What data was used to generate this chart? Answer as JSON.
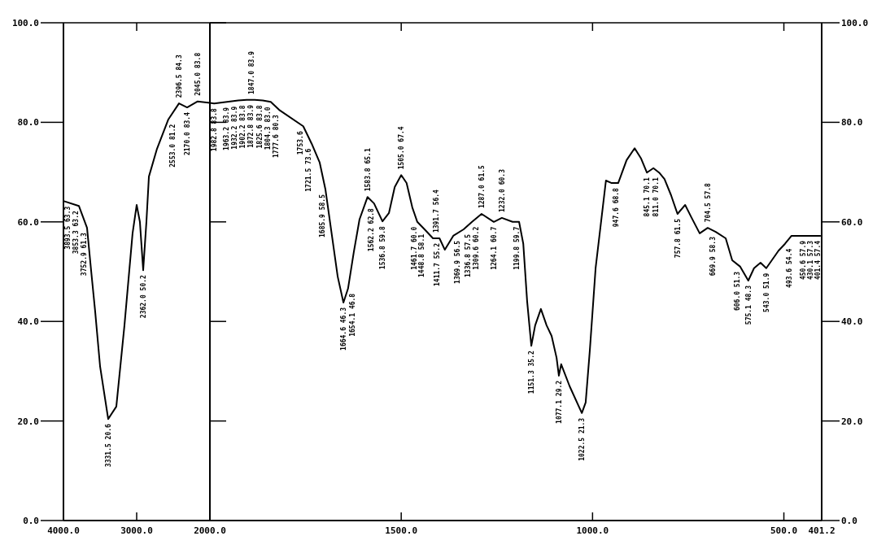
{
  "chart_data": [
    {
      "type": "line",
      "color": "#000000",
      "line_style": "solid",
      "x": [
        4000,
        3789,
        3678,
        3622,
        3567,
        3500,
        3389,
        3278,
        3167,
        3056,
        3000,
        2956,
        2911,
        2867,
        2833,
        2722,
        2567,
        2422,
        2311,
        2167,
        2000
      ],
      "values": [
        64.2,
        63.2,
        58.8,
        50.2,
        42.0,
        31.0,
        20.4,
        22.9,
        39.2,
        57.7,
        63.4,
        60.0,
        50.3,
        60.0,
        69.1,
        74.7,
        80.6,
        83.8,
        83.0,
        84.2,
        83.9
      ],
      "xlim": [
        4000,
        2000
      ],
      "xticks": [
        {
          "value": 4000,
          "label": "4000.0"
        },
        {
          "value": 3000,
          "label": "3000.0"
        },
        {
          "value": 2000,
          "label": "2000.0"
        }
      ],
      "ylim": [
        0,
        100
      ],
      "yticks": [
        {
          "value": 0,
          "label": "0.0"
        },
        {
          "value": 20,
          "label": "20.0"
        },
        {
          "value": 40,
          "label": "40.0"
        },
        {
          "value": 60,
          "label": "60.0"
        },
        {
          "value": 80,
          "label": "80.0"
        },
        {
          "value": 100,
          "label": "100.0"
        }
      ],
      "annotations": [
        {
          "text": "3893.5 63.3",
          "x": 4000,
          "y": 64.2
        },
        {
          "text": "3853.3 63.2",
          "x": 3789,
          "y": 63.2
        },
        {
          "text": "3752.9 61.3",
          "x": 3678,
          "y": 58.8
        },
        {
          "text": "3331.5 20.6",
          "x": 3389,
          "y": 20.4
        },
        {
          "text": "2362.0 50.2",
          "x": 2911,
          "y": 50.3
        },
        {
          "text": "2553.0 81.2",
          "x": 2567,
          "y": 80.6
        },
        {
          "text": "2396.5 84.3",
          "x": 2422,
          "y": 83.8
        },
        {
          "text": "2170.0 83.4",
          "x": 2311,
          "y": 83.0
        },
        {
          "text": "2045.0 83.8",
          "x": 2167,
          "y": 84.2
        }
      ]
    },
    {
      "type": "line",
      "x": [
        2000,
        1989,
        1968,
        1947,
        1926,
        1904,
        1883,
        1862,
        1841,
        1819,
        1756,
        1734,
        1713,
        1698,
        1681,
        1666,
        1651,
        1639,
        1624,
        1609,
        1588,
        1571,
        1549,
        1532,
        1517,
        1500,
        1486,
        1471,
        1458,
        1439,
        1417,
        1400,
        1386,
        1364,
        1337,
        1315,
        1290,
        1258,
        1237,
        1209,
        1192,
        1181,
        1171,
        1160,
        1150,
        1135,
        1120,
        1107,
        1094,
        1088,
        1082,
        1060,
        1028,
        1018,
        1007,
        992,
        965,
        950,
        933,
        911,
        890,
        873,
        858,
        841,
        826,
        812,
        795,
        778,
        758,
        741,
        720,
        699,
        678,
        652,
        635,
        614,
        593,
        578,
        561,
        546,
        514,
        497,
        480,
        461,
        442,
        423,
        405
      ],
      "color": "#000000",
      "line_style": "solid",
      "values": [
        83.9,
        83.8,
        84.0,
        84.2,
        84.4,
        84.5,
        84.5,
        84.4,
        84.1,
        82.5,
        79.2,
        75.7,
        71.9,
        66.5,
        57.2,
        49.0,
        43.8,
        46.6,
        53.9,
        60.5,
        65.0,
        63.7,
        60.1,
        61.8,
        67.0,
        69.4,
        67.8,
        62.9,
        60.0,
        58.5,
        56.7,
        56.7,
        54.4,
        57.2,
        58.5,
        60.0,
        61.6,
        60.0,
        60.8,
        60.0,
        60.0,
        55.6,
        44.1,
        35.1,
        39.2,
        42.5,
        39.2,
        37.1,
        32.7,
        29.1,
        31.4,
        27.0,
        21.6,
        23.7,
        34.3,
        50.7,
        68.3,
        67.8,
        67.8,
        72.4,
        74.8,
        72.7,
        69.9,
        70.8,
        69.9,
        68.6,
        65.4,
        61.6,
        63.4,
        60.8,
        57.7,
        58.8,
        58.0,
        56.7,
        52.3,
        51.0,
        48.2,
        50.7,
        51.8,
        50.7,
        54.2,
        55.6,
        57.2,
        57.2,
        57.2,
        57.2,
        57.2
      ],
      "xlim": [
        2000,
        401.2
      ],
      "xticks": [
        {
          "value": 2000,
          "label": null
        },
        {
          "value": 1500,
          "label": "1500.0"
        },
        {
          "value": 1000,
          "label": "1000.0"
        },
        {
          "value": 500,
          "label": "500.0"
        },
        {
          "value": 401.2,
          "label": "401.2"
        }
      ],
      "ylim": [
        0,
        100
      ],
      "yticks": [
        {
          "value": 0,
          "label": "0.0"
        },
        {
          "value": 20,
          "label": "20.0"
        },
        {
          "value": 40,
          "label": "40.0"
        },
        {
          "value": 60,
          "label": "60.0"
        },
        {
          "value": 80,
          "label": "80.0"
        },
        {
          "value": 100,
          "label": "100.0"
        }
      ],
      "annotations": [
        {
          "text": "1982.8 83.8",
          "x": 1989,
          "y": 83.8
        },
        {
          "text": "1963.2 83.9",
          "x": 1968,
          "y": 84.0
        },
        {
          "text": "1932.2 83.9",
          "x": 1947,
          "y": 84.2
        },
        {
          "text": "1902.2 83.8",
          "x": 1926,
          "y": 84.4
        },
        {
          "text": "1872.8 83.9",
          "x": 1904,
          "y": 84.5
        },
        {
          "text": "1847.0 83.9",
          "x": 1883,
          "y": 84.5
        },
        {
          "text": "1825.6 83.8",
          "x": 1862,
          "y": 84.4
        },
        {
          "text": "1804.3 83.0",
          "x": 1841,
          "y": 84.1
        },
        {
          "text": "1777.6 80.3",
          "x": 1819,
          "y": 82.5
        },
        {
          "text": "1753.6",
          "x": 1756,
          "y": 79.2
        },
        {
          "text": "1721.5 73.6",
          "x": 1734,
          "y": 75.7
        },
        {
          "text": "1685.9 58.5",
          "x": 1698,
          "y": 66.5
        },
        {
          "text": "1664.6 46.3",
          "x": 1651,
          "y": 43.8
        },
        {
          "text": "1654.1 46.8",
          "x": 1639,
          "y": 46.6
        },
        {
          "text": "1583.8 65.1",
          "x": 1588,
          "y": 65.0
        },
        {
          "text": "1562.2 62.8",
          "x": 1571,
          "y": 63.7
        },
        {
          "text": "1536.8 59.8",
          "x": 1549,
          "y": 60.1
        },
        {
          "text": "1505.0 67.4",
          "x": 1500,
          "y": 69.4
        },
        {
          "text": "1461.7 60.0",
          "x": 1458,
          "y": 60.0
        },
        {
          "text": "1448.8 58.1",
          "x": 1439,
          "y": 58.5
        },
        {
          "text": "1411.7 55.2",
          "x": 1417,
          "y": 56.7
        },
        {
          "text": "1391.7 56.4",
          "x": 1400,
          "y": 56.7
        },
        {
          "text": "1369.9 56.5",
          "x": 1364,
          "y": 57.2
        },
        {
          "text": "1336.8 57.5",
          "x": 1337,
          "y": 58.5
        },
        {
          "text": "1309.6 60.2",
          "x": 1315,
          "y": 60.0
        },
        {
          "text": "1287.0 61.5",
          "x": 1290,
          "y": 61.6
        },
        {
          "text": "1264.1 60.7",
          "x": 1258,
          "y": 60.0
        },
        {
          "text": "1232.0 60.3",
          "x": 1237,
          "y": 60.8
        },
        {
          "text": "1199.8 59.7",
          "x": 1209,
          "y": 60.0
        },
        {
          "text": "1151.3 35.2",
          "x": 1160,
          "y": 35.1
        },
        {
          "text": "1077.1 29.2",
          "x": 1088,
          "y": 29.1
        },
        {
          "text": "1022.5 21.3",
          "x": 1028,
          "y": 21.6
        },
        {
          "text": "947.6 68.8",
          "x": 950,
          "y": 67.8
        },
        {
          "text": "845.1 70.1",
          "x": 858,
          "y": 69.9
        },
        {
          "text": "811.0 70.1",
          "x": 826,
          "y": 69.9
        },
        {
          "text": "757.8 61.5",
          "x": 778,
          "y": 61.6
        },
        {
          "text": "704.5 57.8",
          "x": 699,
          "y": 58.8
        },
        {
          "text": "669.9 58.3",
          "x": 678,
          "y": 58.0
        },
        {
          "text": "606.0 51.3",
          "x": 614,
          "y": 51.0
        },
        {
          "text": "575.1 48.3",
          "x": 593,
          "y": 48.2
        },
        {
          "text": "543.0 51.9",
          "x": 546,
          "y": 50.7
        },
        {
          "text": "493.6 54.4",
          "x": 497,
          "y": 55.6
        },
        {
          "text": "450.6 57.9",
          "x": 461,
          "y": 57.2
        },
        {
          "text": "430.1 57.3",
          "x": 442,
          "y": 57.2
        },
        {
          "text": "401.4 57.4",
          "x": 423,
          "y": 57.2
        }
      ]
    }
  ]
}
